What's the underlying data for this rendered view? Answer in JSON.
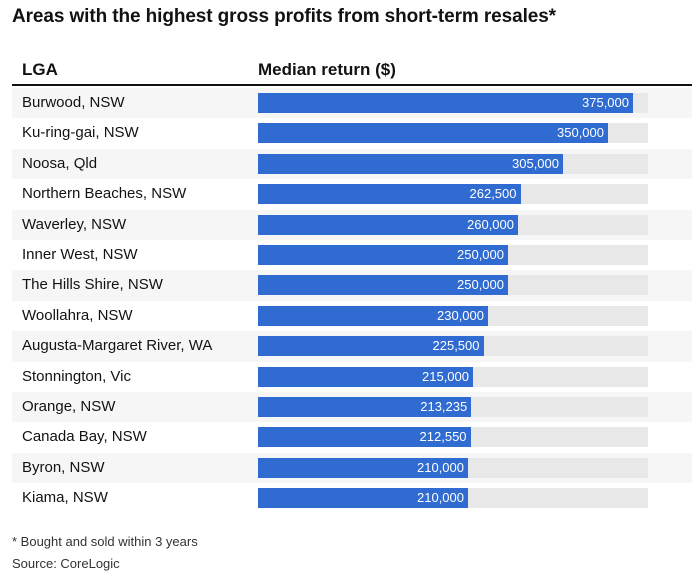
{
  "title": "Areas with the highest gross profits from short-term resales*",
  "headers": {
    "lga": "LGA",
    "value": "Median return ($)"
  },
  "footnote": "* Bought and sold within 3 years",
  "source": "Source: CoreLogic",
  "colors": {
    "bar": "#2f6bd0",
    "track": "#e8e8e8",
    "alt_row": "#f6f6f6"
  },
  "chart_data": {
    "type": "bar",
    "orientation": "horizontal",
    "xlim": [
      0,
      390000
    ],
    "categories": [
      "Burwood, NSW",
      "Ku-ring-gai, NSW",
      "Noosa, Qld",
      "Northern Beaches, NSW",
      "Waverley, NSW",
      "Inner West, NSW",
      "The Hills Shire, NSW",
      "Woollahra, NSW",
      "Augusta-Margaret River, WA",
      "Stonnington, Vic",
      "Orange, NSW",
      "Canada Bay, NSW",
      "Byron, NSW",
      "Kiama, NSW"
    ],
    "values": [
      375000,
      350000,
      305000,
      262500,
      260000,
      250000,
      250000,
      230000,
      225500,
      215000,
      213235,
      212550,
      210000,
      210000
    ],
    "value_labels": [
      "375,000",
      "350,000",
      "305,000",
      "262,500",
      "260,000",
      "250,000",
      "250,000",
      "230,000",
      "225,500",
      "215,000",
      "213,235",
      "212,550",
      "210,000",
      "210,000"
    ]
  }
}
